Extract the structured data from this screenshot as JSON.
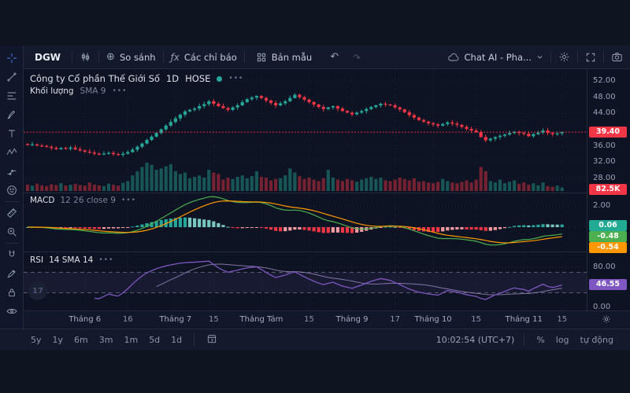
{
  "top_toolbar": {
    "symbol": "DGW",
    "compare_label": "So sánh",
    "indicators_label": "Các chỉ báo",
    "templates_label": "Bản mẫu",
    "layout_label": "Chat AI - Pha...",
    "icons": {
      "undo": "↶",
      "redo": "↷",
      "compare_plus": "⊕",
      "fx": "ƒx"
    }
  },
  "legend": {
    "name": "Công ty Cổ phần Thế Giới Số",
    "interval": "1D",
    "exchange": "HOSE",
    "more_icon": "•••",
    "volume_label": "Khối lượng",
    "volume_ma": "SMA 9"
  },
  "macd_legend": {
    "label": "MACD",
    "params": "12 26 close 9",
    "more_icon": "•••"
  },
  "rsi_legend": {
    "label": "RSI",
    "params": "14 SMA 14",
    "more_icon": "•••"
  },
  "left_toolbar": {
    "items": [
      {
        "name": "crosshair"
      },
      {
        "name": "trendline"
      },
      {
        "name": "fib"
      },
      {
        "name": "brush"
      },
      {
        "name": "text"
      },
      {
        "name": "pattern"
      },
      {
        "name": "forecast"
      },
      {
        "name": "emoji"
      },
      {
        "name": "measure"
      },
      {
        "name": "zoom"
      },
      {
        "name": "magnet"
      },
      {
        "name": "edit"
      },
      {
        "name": "lock"
      },
      {
        "name": "eye"
      }
    ]
  },
  "bottom_bar": {
    "ranges": [
      "5y",
      "1y",
      "6m",
      "3m",
      "1m",
      "5d",
      "1d"
    ],
    "clock": "10:02:54 (UTC+7)",
    "percent_label": "%",
    "log_label": "log",
    "auto_label": "tự động"
  },
  "axis": {
    "price_ticks": [
      52,
      48,
      44,
      36,
      32,
      28
    ],
    "price_badge": "39.40",
    "volume_badge": "82.5K",
    "macd_tick": "2.00",
    "macd_badges": [
      {
        "text": "0.06",
        "color": "#22ab94"
      },
      {
        "text": "-0.48",
        "color": "#4caf50"
      },
      {
        "text": "-0.54",
        "color": "#ff9800"
      }
    ],
    "rsi_ticks": [
      {
        "text": "80.00",
        "value": 80
      },
      {
        "text": "0.00",
        "value": 0
      }
    ],
    "rsi_badge": {
      "text": "46.55",
      "color": "#7e57c2"
    }
  },
  "watermark_text": "17",
  "chart_data": {
    "type": "candlestick",
    "title": "Công ty Cổ phần Thế Giới Số (DGW) · 1D · HOSE",
    "price_range": [
      28,
      52
    ],
    "last_price": 39.4,
    "closes": [
      36.3,
      36.4,
      36.1,
      36.0,
      35.8,
      35.5,
      35.2,
      35.5,
      35.3,
      35.6,
      35.2,
      34.9,
      34.6,
      34.4,
      34.1,
      33.9,
      34.1,
      34.3,
      34.0,
      33.8,
      34.1,
      34.5,
      35.1,
      35.8,
      36.6,
      37.5,
      38.3,
      39.2,
      40.1,
      41.0,
      41.9,
      42.8,
      43.7,
      44.5,
      44.9,
      45.2,
      45.8,
      46.3,
      47.0,
      46.4,
      45.8,
      45.3,
      44.9,
      45.5,
      46.0,
      46.8,
      47.5,
      47.9,
      48.3,
      47.8,
      47.2,
      46.6,
      46.0,
      46.5,
      47.0,
      47.8,
      48.6,
      48.0,
      47.4,
      46.8,
      46.2,
      45.6,
      45.1,
      45.5,
      45.8,
      45.2,
      44.6,
      44.2,
      43.8,
      44.2,
      44.6,
      45.1,
      45.6,
      46.0,
      46.4,
      46.2,
      46.0,
      45.5,
      45.0,
      44.3,
      43.6,
      43.0,
      42.4,
      42.0,
      41.6,
      41.3,
      41.0,
      41.4,
      41.8,
      41.5,
      41.2,
      40.7,
      40.2,
      39.8,
      39.4,
      38.2,
      37.4,
      37.8,
      38.2,
      38.5,
      38.8,
      39.2,
      39.5,
      39.2,
      39.0,
      38.4,
      38.9,
      39.3,
      39.8,
      39.2,
      38.9,
      39.1,
      39.4
    ],
    "volumes": [
      45,
      38,
      52,
      40,
      35,
      48,
      42,
      55,
      38,
      44,
      50,
      42,
      38,
      60,
      45,
      40,
      35,
      52,
      44,
      38,
      58,
      70,
      110,
      140,
      170,
      200,
      185,
      150,
      160,
      175,
      190,
      140,
      120,
      130,
      90,
      100,
      110,
      95,
      150,
      130,
      120,
      80,
      95,
      85,
      100,
      110,
      90,
      105,
      140,
      100,
      95,
      75,
      85,
      90,
      110,
      160,
      130,
      105,
      85,
      95,
      80,
      70,
      90,
      150,
      95,
      80,
      70,
      85,
      75,
      65,
      80,
      90,
      100,
      85,
      95,
      75,
      70,
      80,
      95,
      85,
      75,
      90,
      65,
      70,
      60,
      55,
      65,
      85,
      70,
      60,
      55,
      65,
      75,
      60,
      80,
      170,
      140,
      70,
      60,
      80,
      55,
      65,
      75,
      50,
      60,
      45,
      55,
      40,
      60,
      35,
      30,
      38,
      25
    ],
    "volume_scale_max": 200,
    "time_labels": [
      {
        "text": "Tháng 6",
        "index": 12
      },
      {
        "text": "16",
        "index": 21
      },
      {
        "text": "Tháng 7",
        "index": 31
      },
      {
        "text": "15",
        "index": 39
      },
      {
        "text": "Tháng Tám",
        "index": 49
      },
      {
        "text": "15",
        "index": 59
      },
      {
        "text": "Tháng 9",
        "index": 68
      },
      {
        "text": "17",
        "index": 77
      },
      {
        "text": "Tháng 10",
        "index": 85
      },
      {
        "text": "15",
        "index": 94
      },
      {
        "text": "Tháng 11",
        "index": 104
      },
      {
        "text": "15",
        "index": 112
      }
    ],
    "indicators": {
      "volume_sma": 9,
      "macd": {
        "fast": 12,
        "slow": 26,
        "source": "close",
        "signal": 9,
        "last_histogram": 0.06,
        "last_macd": -0.48,
        "last_signal": -0.54,
        "axis_tick": 2.0
      },
      "rsi": {
        "length": 14,
        "sma": 14,
        "last": 46.55,
        "upper_band": 70,
        "lower_band": 30,
        "axis_ticks": [
          80,
          0
        ]
      }
    },
    "colors": {
      "up": "#26a69a",
      "down": "#f23645",
      "hist_up": "#26a69a",
      "hist_up_weak": "#79c7bd",
      "hist_down": "#f23645",
      "hist_down_weak": "#f79ba2",
      "macd_line": "#4caf50",
      "signal_line": "#ff9800",
      "rsi_line": "#7e57c2",
      "rsi_sma_line": "#b39ddb",
      "price_line": "#f23645"
    }
  }
}
